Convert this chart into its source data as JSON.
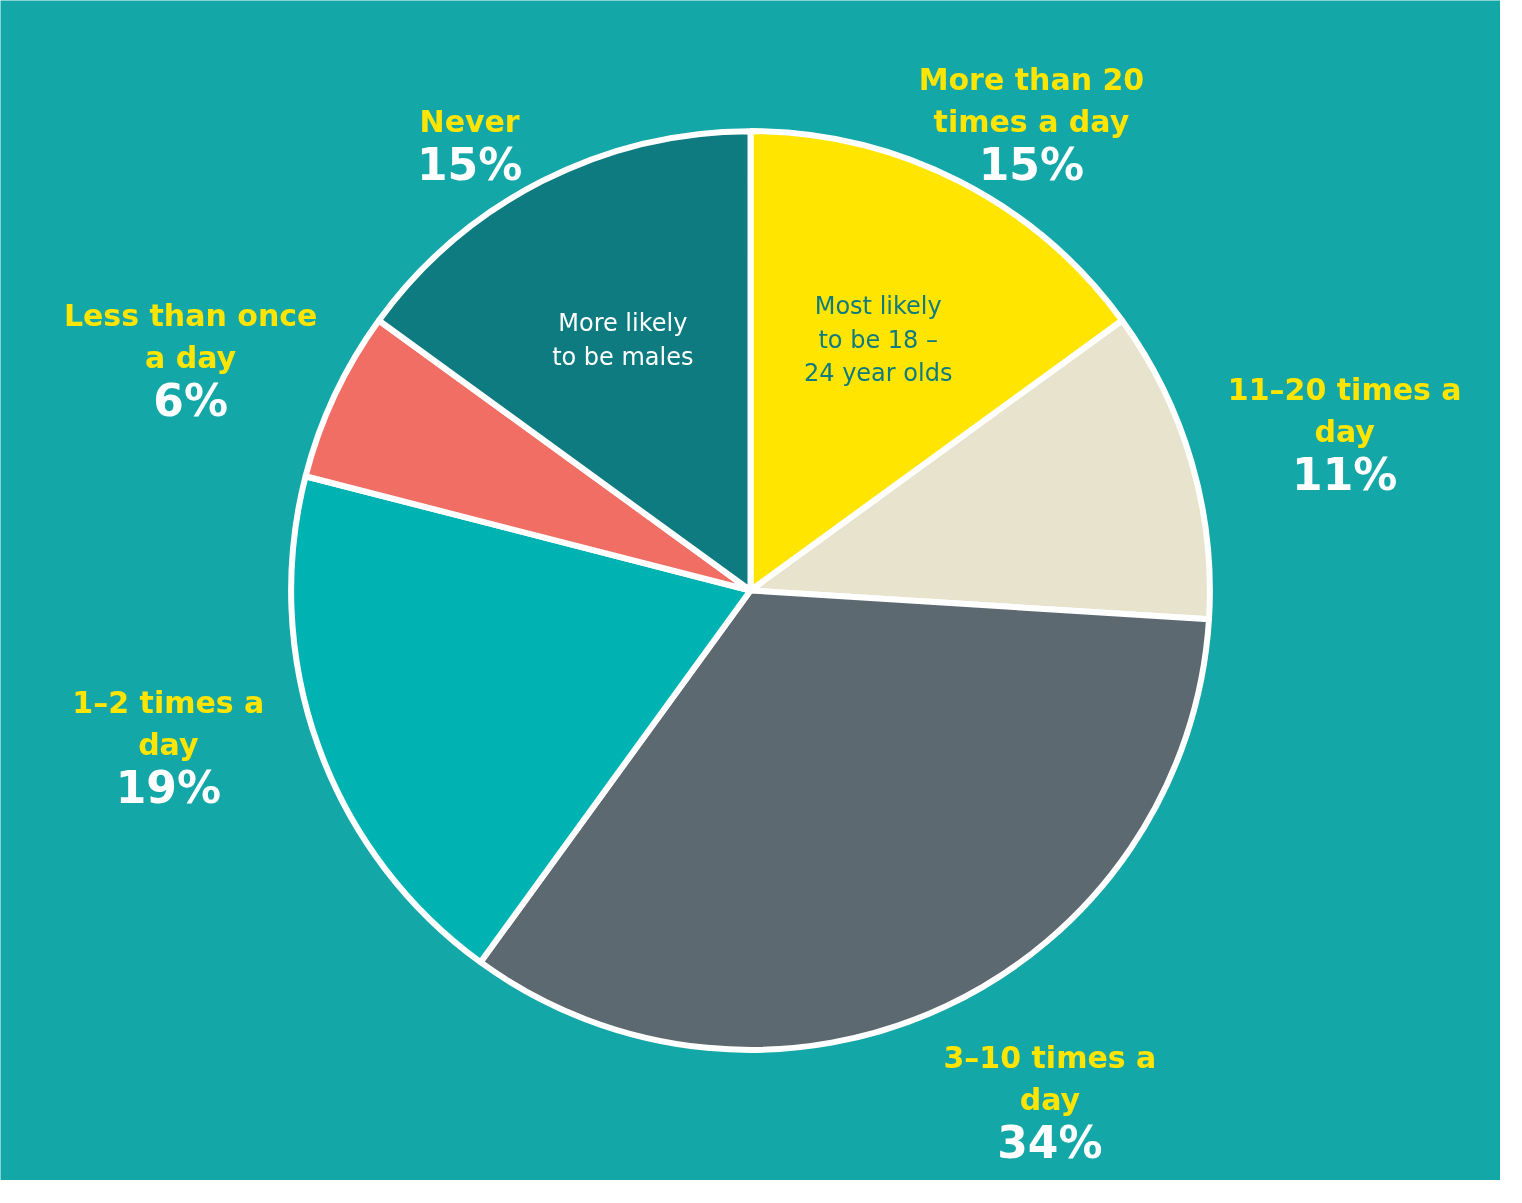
{
  "chart_data": {
    "type": "pie",
    "categories": [
      "More than 20 times a day",
      "11–20 times a day",
      "3–10 times a day",
      "1–2 times a day",
      "Less than once a day",
      "Never"
    ],
    "values": [
      15,
      11,
      34,
      19,
      6,
      15
    ],
    "colors": [
      "#ffe500",
      "#e8e3cc",
      "#5d6970",
      "#00b3b3",
      "#f06e64",
      "#0e7b80"
    ],
    "value_labels": [
      "15%",
      "11%",
      "34%",
      "19%",
      "6%",
      "15%"
    ],
    "annotations": [
      {
        "text": "Most likely to be 18 – 24 year olds",
        "x": "More than 20 times a day"
      },
      {
        "text": "More likely to be males",
        "x": "Never"
      }
    ]
  }
}
